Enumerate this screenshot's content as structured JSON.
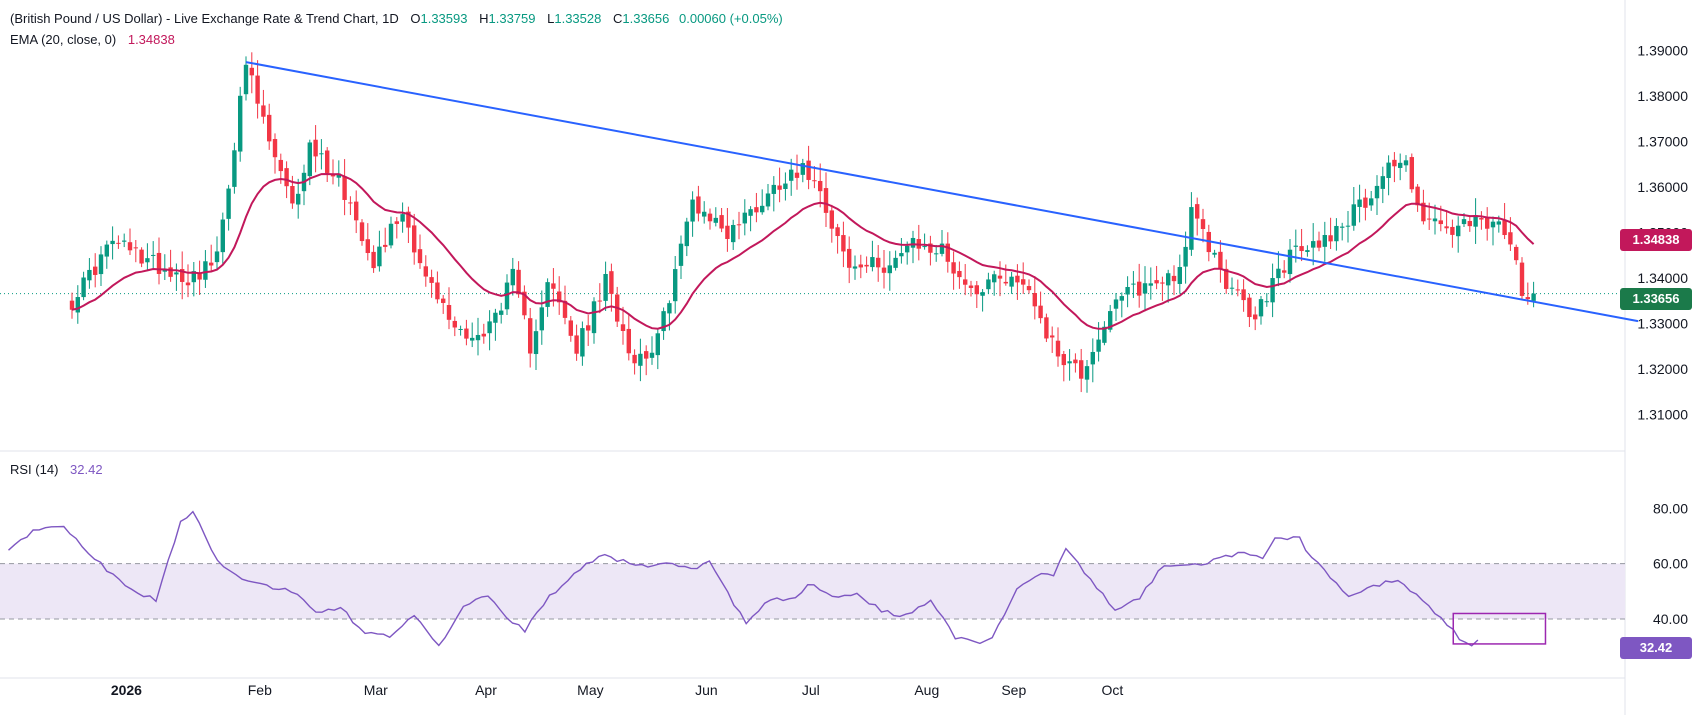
{
  "header": {
    "title": "(British Pound / US Dollar) - Live Exchange Rate & Trend Chart, 1D",
    "open_label": "O",
    "open": "1.33593",
    "high_label": "H",
    "high": "1.33759",
    "low_label": "L",
    "low": "1.33528",
    "close_label": "C",
    "close": "1.33656",
    "change": "0.00060 (+0.05%)",
    "ema_label": "EMA (20, close, 0)",
    "ema_value": "1.34838",
    "rsi_label": "RSI (14)",
    "rsi_value": "32.42"
  },
  "badges": {
    "ema": "1.34838",
    "price": "1.33656",
    "rsi": "32.42"
  },
  "colors": {
    "up": "#089981",
    "down": "#f23645",
    "ema": "#c2185b",
    "trendline": "#2962ff",
    "rsi": "#7e57c2",
    "rsi_band": "#ede7f6",
    "box": "#9c27b0"
  },
  "chart_data": [
    {
      "type": "candlestick",
      "title": "(British Pound / US Dollar) - Live Exchange Rate & Trend Chart, 1D",
      "ylim": [
        1.305,
        1.395
      ],
      "yticks": [
        "1.39000",
        "1.38000",
        "1.37000",
        "1.36000",
        "1.35000",
        "1.34000",
        "1.33000",
        "1.32000",
        "1.31000"
      ],
      "xticks": [
        "2026",
        "Feb",
        "Mar",
        "Apr",
        "May",
        "Jun",
        "Jul",
        "Aug",
        "Sep",
        "Oct"
      ],
      "last_close": 1.33656,
      "ema_last": 1.34838,
      "close_anchors": [
        [
          0,
          1.335
        ],
        [
          7,
          1.348
        ],
        [
          13,
          1.344
        ],
        [
          20,
          1.34
        ],
        [
          25,
          1.344
        ],
        [
          30,
          1.387
        ],
        [
          34,
          1.37
        ],
        [
          38,
          1.355
        ],
        [
          41,
          1.369
        ],
        [
          46,
          1.362
        ],
        [
          52,
          1.344
        ],
        [
          57,
          1.355
        ],
        [
          61,
          1.34
        ],
        [
          66,
          1.329
        ],
        [
          71,
          1.327
        ],
        [
          76,
          1.34
        ],
        [
          79,
          1.325
        ],
        [
          82,
          1.34
        ],
        [
          87,
          1.324
        ],
        [
          92,
          1.339
        ],
        [
          97,
          1.322
        ],
        [
          101,
          1.326
        ],
        [
          107,
          1.357
        ],
        [
          113,
          1.35
        ],
        [
          119,
          1.357
        ],
        [
          124,
          1.364
        ],
        [
          128,
          1.363
        ],
        [
          134,
          1.342
        ],
        [
          140,
          1.343
        ],
        [
          145,
          1.347
        ],
        [
          150,
          1.346
        ],
        [
          155,
          1.337
        ],
        [
          160,
          1.341
        ],
        [
          165,
          1.338
        ],
        [
          169,
          1.325
        ],
        [
          174,
          1.319
        ],
        [
          178,
          1.33
        ],
        [
          182,
          1.337
        ],
        [
          187,
          1.339
        ],
        [
          191,
          1.342
        ],
        [
          193,
          1.354
        ],
        [
          196,
          1.347
        ],
        [
          200,
          1.337
        ],
        [
          204,
          1.331
        ],
        [
          207,
          1.339
        ],
        [
          210,
          1.345
        ],
        [
          214,
          1.347
        ],
        [
          219,
          1.352
        ],
        [
          223,
          1.357
        ],
        [
          227,
          1.365
        ],
        [
          230,
          1.365
        ],
        [
          233,
          1.353
        ],
        [
          238,
          1.35
        ],
        [
          242,
          1.352
        ],
        [
          245,
          1.352
        ],
        [
          247,
          1.349
        ],
        [
          249,
          1.344
        ],
        [
          250,
          1.338
        ],
        [
          252,
          1.33656
        ]
      ],
      "trendline": {
        "start": {
          "x_index": 30,
          "y": 1.3875
        },
        "end": {
          "x_index": 270,
          "y": 1.3305
        }
      }
    },
    {
      "type": "line",
      "title": "RSI (14)",
      "ylim": [
        27,
        83
      ],
      "yticks": [
        "80.00",
        "60.00",
        "40.00"
      ],
      "band": [
        40,
        60
      ],
      "last_value": 32.42,
      "anchors": [
        [
          0,
          65
        ],
        [
          5,
          73
        ],
        [
          9,
          73
        ],
        [
          12,
          66
        ],
        [
          16,
          58
        ],
        [
          20,
          50
        ],
        [
          24,
          47
        ],
        [
          28,
          75
        ],
        [
          30,
          79
        ],
        [
          34,
          61
        ],
        [
          38,
          55
        ],
        [
          42,
          52
        ],
        [
          46,
          50
        ],
        [
          50,
          43
        ],
        [
          54,
          44
        ],
        [
          58,
          35
        ],
        [
          62,
          34
        ],
        [
          66,
          42
        ],
        [
          70,
          30
        ],
        [
          74,
          45
        ],
        [
          78,
          48
        ],
        [
          81,
          40
        ],
        [
          84,
          36
        ],
        [
          88,
          48
        ],
        [
          92,
          56
        ],
        [
          96,
          63
        ],
        [
          100,
          61
        ],
        [
          104,
          59
        ],
        [
          108,
          60
        ],
        [
          112,
          58
        ],
        [
          114,
          61
        ],
        [
          118,
          45
        ],
        [
          120,
          39
        ],
        [
          124,
          47
        ],
        [
          128,
          47
        ],
        [
          130,
          53
        ],
        [
          134,
          48
        ],
        [
          138,
          49
        ],
        [
          142,
          43
        ],
        [
          146,
          41
        ],
        [
          150,
          47
        ],
        [
          154,
          33
        ],
        [
          158,
          31
        ],
        [
          160,
          33
        ],
        [
          164,
          51
        ],
        [
          168,
          57
        ],
        [
          170,
          56
        ],
        [
          172,
          66
        ],
        [
          176,
          54
        ],
        [
          180,
          43
        ],
        [
          184,
          48
        ],
        [
          188,
          60
        ],
        [
          192,
          59
        ],
        [
          196,
          61
        ],
        [
          200,
          64
        ],
        [
          204,
          62
        ],
        [
          206,
          70
        ],
        [
          210,
          69
        ],
        [
          212,
          62
        ],
        [
          215,
          55
        ],
        [
          218,
          48
        ],
        [
          222,
          52
        ],
        [
          226,
          54
        ],
        [
          228,
          50
        ],
        [
          231,
          45
        ],
        [
          234,
          38
        ],
        [
          236,
          33
        ],
        [
          238,
          31
        ],
        [
          239,
          32.42
        ]
      ],
      "highlight_box": {
        "x_range": [
          235,
          250
        ],
        "y_range": [
          31,
          42
        ]
      }
    }
  ]
}
